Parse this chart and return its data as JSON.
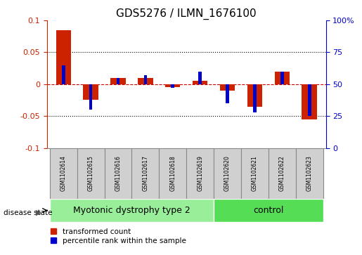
{
  "title": "GDS5276 / ILMN_1676100",
  "samples": [
    "GSM1102614",
    "GSM1102615",
    "GSM1102616",
    "GSM1102617",
    "GSM1102618",
    "GSM1102619",
    "GSM1102620",
    "GSM1102621",
    "GSM1102622",
    "GSM1102623"
  ],
  "red_values": [
    0.085,
    -0.025,
    0.01,
    0.01,
    -0.005,
    0.005,
    -0.01,
    -0.035,
    0.02,
    -0.055
  ],
  "blue_values": [
    65,
    30,
    55,
    57,
    47,
    60,
    35,
    28,
    60,
    25
  ],
  "red_color": "#cc2200",
  "blue_color": "#0000cc",
  "ylim_left": [
    -0.1,
    0.1
  ],
  "ylim_right": [
    0,
    100
  ],
  "yticks_left": [
    -0.1,
    -0.05,
    0.0,
    0.05,
    0.1
  ],
  "yticks_right": [
    0,
    25,
    50,
    75,
    100
  ],
  "ytick_labels_right": [
    "0",
    "25",
    "50",
    "75",
    "100%"
  ],
  "groups": [
    {
      "label": "Myotonic dystrophy type 2",
      "start": 0,
      "end": 6,
      "color": "#99ee99"
    },
    {
      "label": "control",
      "start": 6,
      "end": 10,
      "color": "#55dd55"
    }
  ],
  "disease_state_label": "disease state",
  "legend_red": "transformed count",
  "legend_blue": "percentile rank within the sample",
  "red_bar_width": 0.55,
  "blue_bar_width": 0.12,
  "dotted_line_color": "#000000",
  "zero_line_color": "#cc0000",
  "background_color": "#ffffff",
  "label_color_left": "#cc2200",
  "label_color_right": "#0000cc",
  "title_fontsize": 11,
  "tick_fontsize": 8,
  "label_fontsize": 8,
  "group_label_fontsize": 9,
  "sample_box_color": "#d0d0d0",
  "sample_box_border": "#888888"
}
